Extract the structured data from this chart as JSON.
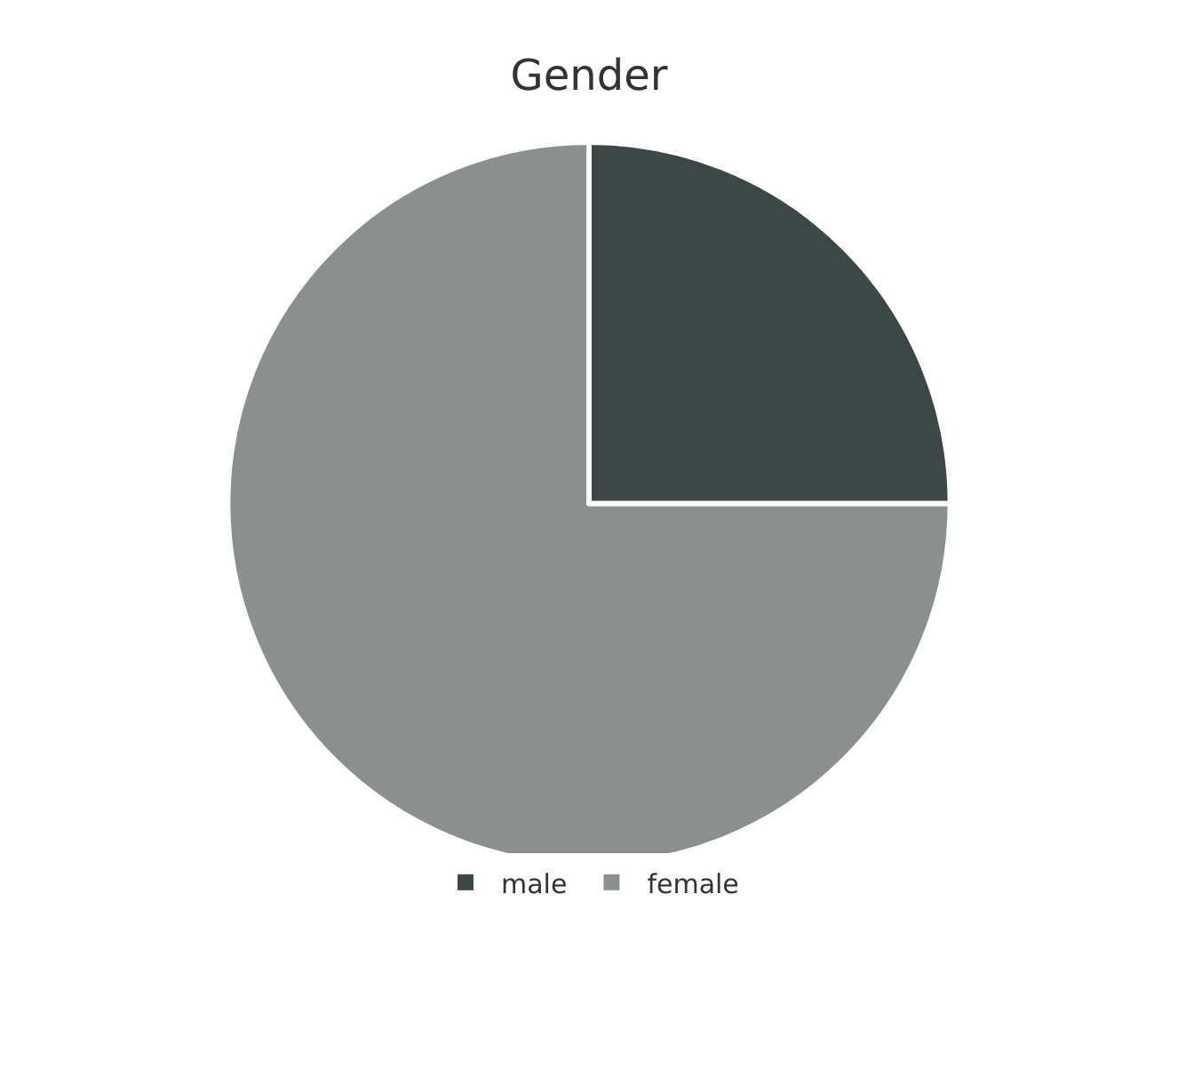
{
  "chart_data": {
    "type": "pie",
    "title": "Gender",
    "categories": [
      "male",
      "female"
    ],
    "values": [
      25,
      75
    ],
    "colors": [
      "#3d4746",
      "#8b908e"
    ],
    "legend": "bottom"
  }
}
